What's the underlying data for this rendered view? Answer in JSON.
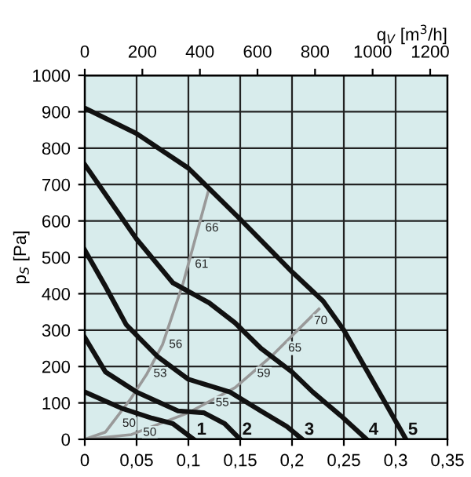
{
  "chart_data": {
    "type": "line",
    "ylabel": "p$_{S}$ [Pa]",
    "x2label": "q$_{V}$ [m$^{3}$/h]",
    "xlim": [
      0,
      0.35
    ],
    "xticks": [
      0,
      {
        "value": 0.05,
        "label": "0,05"
      },
      {
        "value": 0.1,
        "label": "0,1"
      },
      {
        "value": 0.15,
        "label": "0,15"
      },
      {
        "value": 0.2,
        "label": "0,2"
      },
      {
        "value": 0.25,
        "label": "0,25"
      },
      {
        "value": 0.3,
        "label": "0,3"
      },
      {
        "value": 0.35,
        "label": "0,35"
      }
    ],
    "x2lim": [
      0,
      1260
    ],
    "x2ticks": [
      0,
      200,
      400,
      600,
      800,
      1000,
      1200
    ],
    "ylim": [
      0,
      1000
    ],
    "yticks": [
      0,
      100,
      200,
      300,
      400,
      500,
      600,
      700,
      800,
      900,
      1000
    ],
    "grid": true,
    "marker": "none",
    "line_style": "solid",
    "series": [
      {
        "color": "#111111",
        "x": [
          0,
          0.035,
          0.065,
          0.085,
          0.105
        ],
        "values": [
          130,
          86,
          58,
          43,
          0
        ]
      },
      {
        "color": "#111111",
        "x": [
          0,
          0.02,
          0.05,
          0.09,
          0.115,
          0.135,
          0.15
        ],
        "values": [
          280,
          185,
          130,
          78,
          73,
          43,
          0
        ]
      },
      {
        "color": "#111111",
        "x": [
          0,
          0.02,
          0.04,
          0.07,
          0.1,
          0.14,
          0.17,
          0.195,
          0.21
        ],
        "values": [
          520,
          420,
          315,
          228,
          165,
          130,
          78,
          35,
          0
        ]
      },
      {
        "color": "#111111",
        "x": [
          0,
          0.05,
          0.085,
          0.12,
          0.145,
          0.17,
          0.2,
          0.22,
          0.247,
          0.272
        ],
        "values": [
          755,
          550,
          430,
          375,
          320,
          250,
          185,
          130,
          65,
          0
        ]
      },
      {
        "color": "#111111",
        "x": [
          0,
          0.05,
          0.1,
          0.15,
          0.2,
          0.23,
          0.25,
          0.27,
          0.29,
          0.31
        ],
        "values": [
          910,
          840,
          745,
          605,
          460,
          380,
          300,
          200,
          100,
          0
        ]
      },
      {
        "color": "#999999",
        "x": [
          0,
          0.02,
          0.044,
          0.06,
          0.075,
          0.095,
          0.12
        ],
        "values": [
          0,
          20,
          110,
          180,
          260,
          430,
          690
        ]
      },
      {
        "color": "#999999",
        "x": [
          0,
          0.045,
          0.1,
          0.145,
          0.18,
          0.226
        ],
        "values": [
          0,
          13,
          73,
          142,
          228,
          358
        ]
      }
    ],
    "annotations": [
      {
        "text": "1",
        "x": 0.108,
        "y": 25
      },
      {
        "text": "2",
        "x": 0.152,
        "y": 25
      },
      {
        "text": "3",
        "x": 0.212,
        "y": 25
      },
      {
        "text": "4",
        "x": 0.274,
        "y": 25
      },
      {
        "text": "5",
        "x": 0.312,
        "y": 25
      },
      {
        "text": "50",
        "x": 0.03,
        "y": 43
      },
      {
        "text": "53",
        "x": 0.06,
        "y": 180
      },
      {
        "text": "56",
        "x": 0.075,
        "y": 260
      },
      {
        "text": "61",
        "x": 0.1,
        "y": 480
      },
      {
        "text": "66",
        "x": 0.11,
        "y": 580
      },
      {
        "text": "50",
        "x": 0.05,
        "y": 18
      },
      {
        "text": "55",
        "x": 0.12,
        "y": 100
      },
      {
        "text": "59",
        "x": 0.16,
        "y": 180
      },
      {
        "text": "65",
        "x": 0.19,
        "y": 250
      },
      {
        "text": "70",
        "x": 0.215,
        "y": 325
      }
    ]
  }
}
